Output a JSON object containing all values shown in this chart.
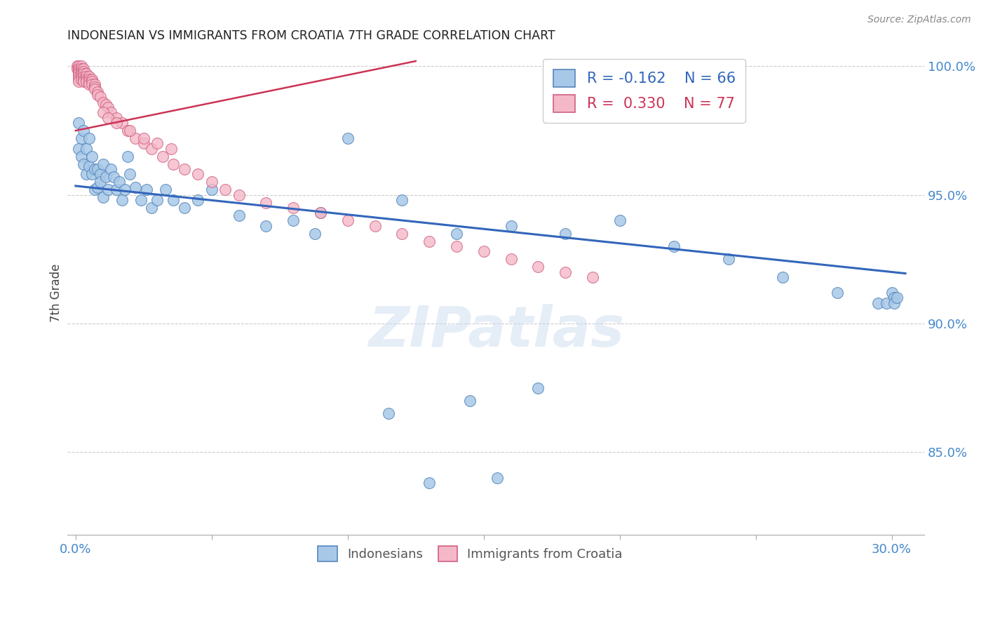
{
  "title": "INDONESIAN VS IMMIGRANTS FROM CROATIA 7TH GRADE CORRELATION CHART",
  "source": "Source: ZipAtlas.com",
  "xlim": [
    -0.003,
    0.312
  ],
  "ylim": [
    0.818,
    1.006
  ],
  "ylabel_ticks": [
    "100.0%",
    "95.0%",
    "90.0%",
    "85.0%"
  ],
  "ylabel_vals": [
    1.0,
    0.95,
    0.9,
    0.85
  ],
  "xlabel_vals": [
    0.0,
    0.05,
    0.1,
    0.15,
    0.2,
    0.25,
    0.3
  ],
  "watermark_text": "ZIPatlas",
  "blue_color": "#a8c8e8",
  "blue_edge": "#5588bb",
  "pink_color": "#f4b8c8",
  "pink_edge": "#d06080",
  "blue_line_color": "#3366bb",
  "pink_line_color": "#cc3355",
  "grid_color": "#cccccc",
  "right_axis_color": "#4488cc",
  "title_color": "#222222",
  "blue_x": [
    0.001,
    0.001,
    0.002,
    0.002,
    0.003,
    0.003,
    0.004,
    0.004,
    0.005,
    0.005,
    0.006,
    0.006,
    0.007,
    0.007,
    0.008,
    0.008,
    0.009,
    0.009,
    0.01,
    0.01,
    0.011,
    0.012,
    0.013,
    0.014,
    0.015,
    0.016,
    0.017,
    0.018,
    0.019,
    0.02,
    0.022,
    0.024,
    0.026,
    0.028,
    0.03,
    0.033,
    0.036,
    0.04,
    0.045,
    0.05,
    0.06,
    0.07,
    0.08,
    0.09,
    0.1,
    0.12,
    0.14,
    0.16,
    0.18,
    0.2,
    0.22,
    0.24,
    0.26,
    0.28,
    0.295,
    0.298,
    0.3,
    0.301,
    0.301,
    0.302,
    0.145,
    0.17,
    0.115,
    0.155,
    0.13,
    0.088
  ],
  "blue_y": [
    0.978,
    0.968,
    0.972,
    0.965,
    0.975,
    0.962,
    0.968,
    0.958,
    0.972,
    0.961,
    0.965,
    0.958,
    0.96,
    0.952,
    0.96,
    0.953,
    0.958,
    0.955,
    0.962,
    0.949,
    0.957,
    0.952,
    0.96,
    0.957,
    0.952,
    0.955,
    0.948,
    0.952,
    0.965,
    0.958,
    0.953,
    0.948,
    0.952,
    0.945,
    0.948,
    0.952,
    0.948,
    0.945,
    0.948,
    0.952,
    0.942,
    0.938,
    0.94,
    0.943,
    0.972,
    0.948,
    0.935,
    0.938,
    0.935,
    0.94,
    0.93,
    0.925,
    0.918,
    0.912,
    0.908,
    0.908,
    0.912,
    0.91,
    0.908,
    0.91,
    0.87,
    0.875,
    0.865,
    0.84,
    0.838,
    0.935
  ],
  "pink_x": [
    0.0005,
    0.0005,
    0.001,
    0.001,
    0.001,
    0.001,
    0.001,
    0.001,
    0.001,
    0.001,
    0.001,
    0.002,
    0.002,
    0.002,
    0.002,
    0.002,
    0.002,
    0.003,
    0.003,
    0.003,
    0.003,
    0.003,
    0.003,
    0.004,
    0.004,
    0.004,
    0.004,
    0.005,
    0.005,
    0.005,
    0.005,
    0.006,
    0.006,
    0.006,
    0.007,
    0.007,
    0.007,
    0.008,
    0.008,
    0.009,
    0.01,
    0.011,
    0.012,
    0.013,
    0.015,
    0.017,
    0.019,
    0.022,
    0.025,
    0.028,
    0.032,
    0.036,
    0.04,
    0.045,
    0.05,
    0.055,
    0.06,
    0.07,
    0.08,
    0.09,
    0.1,
    0.11,
    0.12,
    0.13,
    0.14,
    0.15,
    0.16,
    0.17,
    0.18,
    0.19,
    0.01,
    0.012,
    0.015,
    0.02,
    0.025,
    0.03,
    0.035
  ],
  "pink_y": [
    1.0,
    0.999,
    1.0,
    0.999,
    0.998,
    0.997,
    0.998,
    0.997,
    0.996,
    0.995,
    0.994,
    1.0,
    0.999,
    0.998,
    0.997,
    0.996,
    0.995,
    0.999,
    0.998,
    0.997,
    0.996,
    0.995,
    0.994,
    0.997,
    0.996,
    0.995,
    0.994,
    0.996,
    0.995,
    0.994,
    0.993,
    0.995,
    0.994,
    0.993,
    0.993,
    0.992,
    0.991,
    0.99,
    0.989,
    0.988,
    0.986,
    0.985,
    0.984,
    0.982,
    0.98,
    0.978,
    0.975,
    0.972,
    0.97,
    0.968,
    0.965,
    0.962,
    0.96,
    0.958,
    0.955,
    0.952,
    0.95,
    0.947,
    0.945,
    0.943,
    0.94,
    0.938,
    0.935,
    0.932,
    0.93,
    0.928,
    0.925,
    0.922,
    0.92,
    0.918,
    0.982,
    0.98,
    0.978,
    0.975,
    0.972,
    0.97,
    0.968
  ],
  "blue_trend_x": [
    0.0,
    0.305
  ],
  "blue_trend_y": [
    0.9535,
    0.9195
  ],
  "pink_trend_x": [
    0.0,
    0.125
  ],
  "pink_trend_y": [
    0.975,
    1.002
  ]
}
